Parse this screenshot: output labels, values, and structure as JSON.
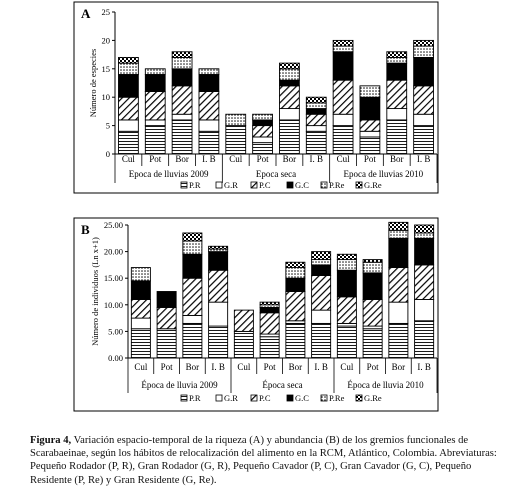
{
  "caption": {
    "label": "Figura 4,",
    "text": "Variación espacio-temporal de la riqueza (A) y abundancia (B) de los gremios funcionales de Scarabaeinae, según los hábitos de relocalización del alimento en la RCM, Atlántico, Colombia. Abreviaturas: Pequeño Rodador (P, R), Gran Rodador (G, R), Pequeño Cavador (P, C), Gran Cavador (G, C), Pequeño Residente (P, Re) y Gran Residente (G, Re)."
  },
  "legend_items": [
    {
      "code": "P.R",
      "pattern": "hstripes"
    },
    {
      "code": "G.R",
      "pattern": "white"
    },
    {
      "code": "P.C",
      "pattern": "diag"
    },
    {
      "code": "G.C",
      "pattern": "black"
    },
    {
      "code": "P.Re",
      "pattern": "dots"
    },
    {
      "code": "G.Re",
      "pattern": "checker"
    }
  ],
  "chart_data": [
    {
      "type": "bar",
      "stacked": true,
      "panel": "A",
      "ylabel": "Número de especies",
      "ylim": [
        0,
        25
      ],
      "yticks": [
        "0",
        "5",
        "10",
        "15",
        "20",
        "25"
      ],
      "categories": [
        "Cul",
        "Pot",
        "Bor",
        "I. B",
        "Cul",
        "Pot",
        "Bor",
        "I. B",
        "Cul",
        "Pot",
        "Bor",
        "I. B"
      ],
      "groups": [
        {
          "label": "Epoca de lluvias 2009",
          "categories": [
            "Cul",
            "Pot",
            "Bor",
            "I. B"
          ]
        },
        {
          "label": "Epoca seca",
          "categories": [
            "Cul",
            "Pot",
            "Bor",
            "I. B"
          ]
        },
        {
          "label": "Epoca de lluvias 2010",
          "categories": [
            "Cul",
            "Pot",
            "Bor",
            "I. B"
          ]
        }
      ],
      "series": [
        {
          "name": "P.R",
          "values": [
            4,
            5,
            6,
            4,
            5,
            2,
            6,
            4,
            5,
            3,
            6,
            5
          ]
        },
        {
          "name": "G.R",
          "values": [
            2,
            1,
            1,
            2,
            0,
            1,
            2,
            1,
            2,
            1,
            2,
            2
          ]
        },
        {
          "name": "P.C",
          "values": [
            4,
            5,
            5,
            5,
            0,
            2,
            4,
            2,
            6,
            2,
            5,
            5
          ]
        },
        {
          "name": "G.C",
          "values": [
            4,
            3,
            3,
            3,
            0,
            1,
            1,
            1,
            5,
            4,
            3,
            5
          ]
        },
        {
          "name": "P.Re",
          "values": [
            2,
            1,
            2,
            1,
            2,
            1,
            2,
            1,
            1,
            2,
            1,
            2
          ]
        },
        {
          "name": "G.Re",
          "values": [
            1,
            0,
            1,
            0,
            0,
            0,
            1,
            1,
            1,
            0,
            1,
            1
          ]
        }
      ]
    },
    {
      "type": "bar",
      "stacked": true,
      "panel": "B",
      "ylabel": "Número de individuos (Ln x+1)",
      "ylim": [
        0,
        25
      ],
      "yticks": [
        "0.00",
        "5.00",
        "10.00",
        "15.00",
        "20.00",
        "25.00"
      ],
      "categories": [
        "Cul",
        "Pot",
        "Bor",
        "I. B",
        "Cul",
        "Pot",
        "Bor",
        "I. B",
        "Cul",
        "Pot",
        "Bor",
        "I. B"
      ],
      "groups": [
        {
          "label": "Época de lluvia 2009",
          "categories": [
            "Cul",
            "Pot",
            "Bor",
            "I. B"
          ]
        },
        {
          "label": "Época seca",
          "categories": [
            "Cul",
            "Pot",
            "Bor",
            "I. B"
          ]
        },
        {
          "label": "Época de lluvia 2010",
          "categories": [
            "Cul",
            "Pot",
            "Bor",
            "I. B"
          ]
        }
      ],
      "series": [
        {
          "name": "P.R",
          "values": [
            5.5,
            5.5,
            6.5,
            6.0,
            5.0,
            4.0,
            6.5,
            6.5,
            6.0,
            5.5,
            6.5,
            7.0
          ]
        },
        {
          "name": "G.R",
          "values": [
            2.0,
            0.0,
            1.5,
            4.5,
            0.0,
            0.5,
            0.5,
            2.5,
            0.5,
            0.5,
            4.0,
            4.0
          ]
        },
        {
          "name": "P.C",
          "values": [
            3.5,
            4.0,
            7.0,
            6.0,
            4.0,
            4.0,
            5.5,
            6.5,
            5.0,
            5.0,
            6.5,
            6.5
          ]
        },
        {
          "name": "G.C",
          "values": [
            3.5,
            3.0,
            4.5,
            3.5,
            0.0,
            1.0,
            2.5,
            2.0,
            5.0,
            5.0,
            5.5,
            5.0
          ]
        },
        {
          "name": "P.Re",
          "values": [
            2.5,
            0.0,
            2.5,
            0.5,
            0.0,
            0.5,
            2.0,
            1.0,
            2.0,
            2.0,
            1.5,
            1.0
          ]
        },
        {
          "name": "G.Re",
          "values": [
            0.0,
            0.0,
            1.5,
            0.5,
            0.0,
            0.5,
            1.0,
            1.5,
            1.0,
            0.5,
            1.5,
            1.5
          ]
        }
      ]
    }
  ]
}
